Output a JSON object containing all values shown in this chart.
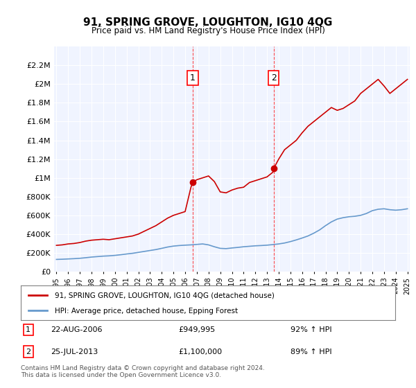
{
  "title": "91, SPRING GROVE, LOUGHTON, IG10 4QG",
  "subtitle": "Price paid vs. HM Land Registry's House Price Index (HPI)",
  "footer": "Contains HM Land Registry data © Crown copyright and database right 2024.\nThis data is licensed under the Open Government Licence v3.0.",
  "legend_line1": "91, SPRING GROVE, LOUGHTON, IG10 4QG (detached house)",
  "legend_line2": "HPI: Average price, detached house, Epping Forest",
  "annotation1_label": "1",
  "annotation1_date": "22-AUG-2006",
  "annotation1_price": "£949,995",
  "annotation1_hpi": "92% ↑ HPI",
  "annotation2_label": "2",
  "annotation2_date": "25-JUL-2013",
  "annotation2_price": "£1,100,000",
  "annotation2_hpi": "89% ↑ HPI",
  "red_color": "#cc0000",
  "blue_color": "#6699cc",
  "background_color": "#f0f4ff",
  "ylim": [
    0,
    2400000
  ],
  "yticks": [
    0,
    200000,
    400000,
    600000,
    800000,
    1000000,
    1200000,
    1400000,
    1600000,
    1800000,
    2000000,
    2200000
  ],
  "ytick_labels": [
    "£0",
    "£200K",
    "£400K",
    "£600K",
    "£800K",
    "£1M",
    "£1.2M",
    "£1.4M",
    "£1.6M",
    "£1.8M",
    "£2M",
    "£2.2M"
  ],
  "sale1_x": 2006.65,
  "sale1_y": 949995,
  "sale2_x": 2013.57,
  "sale2_y": 1100000,
  "red_x": [
    1995,
    1995.5,
    1996,
    1996.5,
    1997,
    1997.5,
    1998,
    1998.5,
    1999,
    1999.5,
    2000,
    2000.5,
    2001,
    2001.5,
    2002,
    2002.5,
    2003,
    2003.5,
    2004,
    2004.5,
    2005,
    2005.5,
    2006,
    2006.5,
    2006.65,
    2007,
    2007.5,
    2008,
    2008.5,
    2009,
    2009.5,
    2010,
    2010.5,
    2011,
    2011.5,
    2012,
    2012.5,
    2013,
    2013.5,
    2013.57,
    2014,
    2014.5,
    2015,
    2015.5,
    2016,
    2016.5,
    2017,
    2017.5,
    2018,
    2018.5,
    2019,
    2019.5,
    2020,
    2020.5,
    2021,
    2021.5,
    2022,
    2022.5,
    2023,
    2023.5,
    2024,
    2024.5,
    2025
  ],
  "red_y": [
    280000,
    285000,
    295000,
    300000,
    310000,
    325000,
    335000,
    340000,
    345000,
    340000,
    350000,
    360000,
    370000,
    380000,
    400000,
    430000,
    460000,
    490000,
    530000,
    570000,
    600000,
    620000,
    640000,
    900000,
    949995,
    980000,
    1000000,
    1020000,
    960000,
    850000,
    840000,
    870000,
    890000,
    900000,
    950000,
    970000,
    990000,
    1010000,
    1060000,
    1100000,
    1200000,
    1300000,
    1350000,
    1400000,
    1480000,
    1550000,
    1600000,
    1650000,
    1700000,
    1750000,
    1720000,
    1740000,
    1780000,
    1820000,
    1900000,
    1950000,
    2000000,
    2050000,
    1980000,
    1900000,
    1950000,
    2000000,
    2050000
  ],
  "blue_x": [
    1995,
    1995.5,
    1996,
    1996.5,
    1997,
    1997.5,
    1998,
    1998.5,
    1999,
    1999.5,
    2000,
    2000.5,
    2001,
    2001.5,
    2002,
    2002.5,
    2003,
    2003.5,
    2004,
    2004.5,
    2005,
    2005.5,
    2006,
    2006.5,
    2007,
    2007.5,
    2008,
    2008.5,
    2009,
    2009.5,
    2010,
    2010.5,
    2011,
    2011.5,
    2012,
    2012.5,
    2013,
    2013.5,
    2014,
    2014.5,
    2015,
    2015.5,
    2016,
    2016.5,
    2017,
    2017.5,
    2018,
    2018.5,
    2019,
    2019.5,
    2020,
    2020.5,
    2021,
    2021.5,
    2022,
    2022.5,
    2023,
    2023.5,
    2024,
    2024.5,
    2025
  ],
  "blue_y": [
    130000,
    132000,
    135000,
    138000,
    142000,
    148000,
    155000,
    160000,
    165000,
    168000,
    173000,
    180000,
    188000,
    195000,
    205000,
    215000,
    225000,
    235000,
    248000,
    262000,
    272000,
    278000,
    282000,
    285000,
    290000,
    295000,
    285000,
    265000,
    248000,
    245000,
    252000,
    258000,
    265000,
    270000,
    275000,
    278000,
    282000,
    288000,
    295000,
    305000,
    320000,
    338000,
    358000,
    380000,
    410000,
    445000,
    490000,
    530000,
    560000,
    575000,
    585000,
    590000,
    600000,
    620000,
    650000,
    665000,
    670000,
    660000,
    655000,
    660000,
    670000
  ],
  "xticks": [
    1995,
    1996,
    1997,
    1998,
    1999,
    2000,
    2001,
    2002,
    2003,
    2004,
    2005,
    2006,
    2007,
    2008,
    2009,
    2010,
    2011,
    2012,
    2013,
    2014,
    2015,
    2016,
    2017,
    2018,
    2019,
    2020,
    2021,
    2022,
    2023,
    2024,
    2025
  ]
}
